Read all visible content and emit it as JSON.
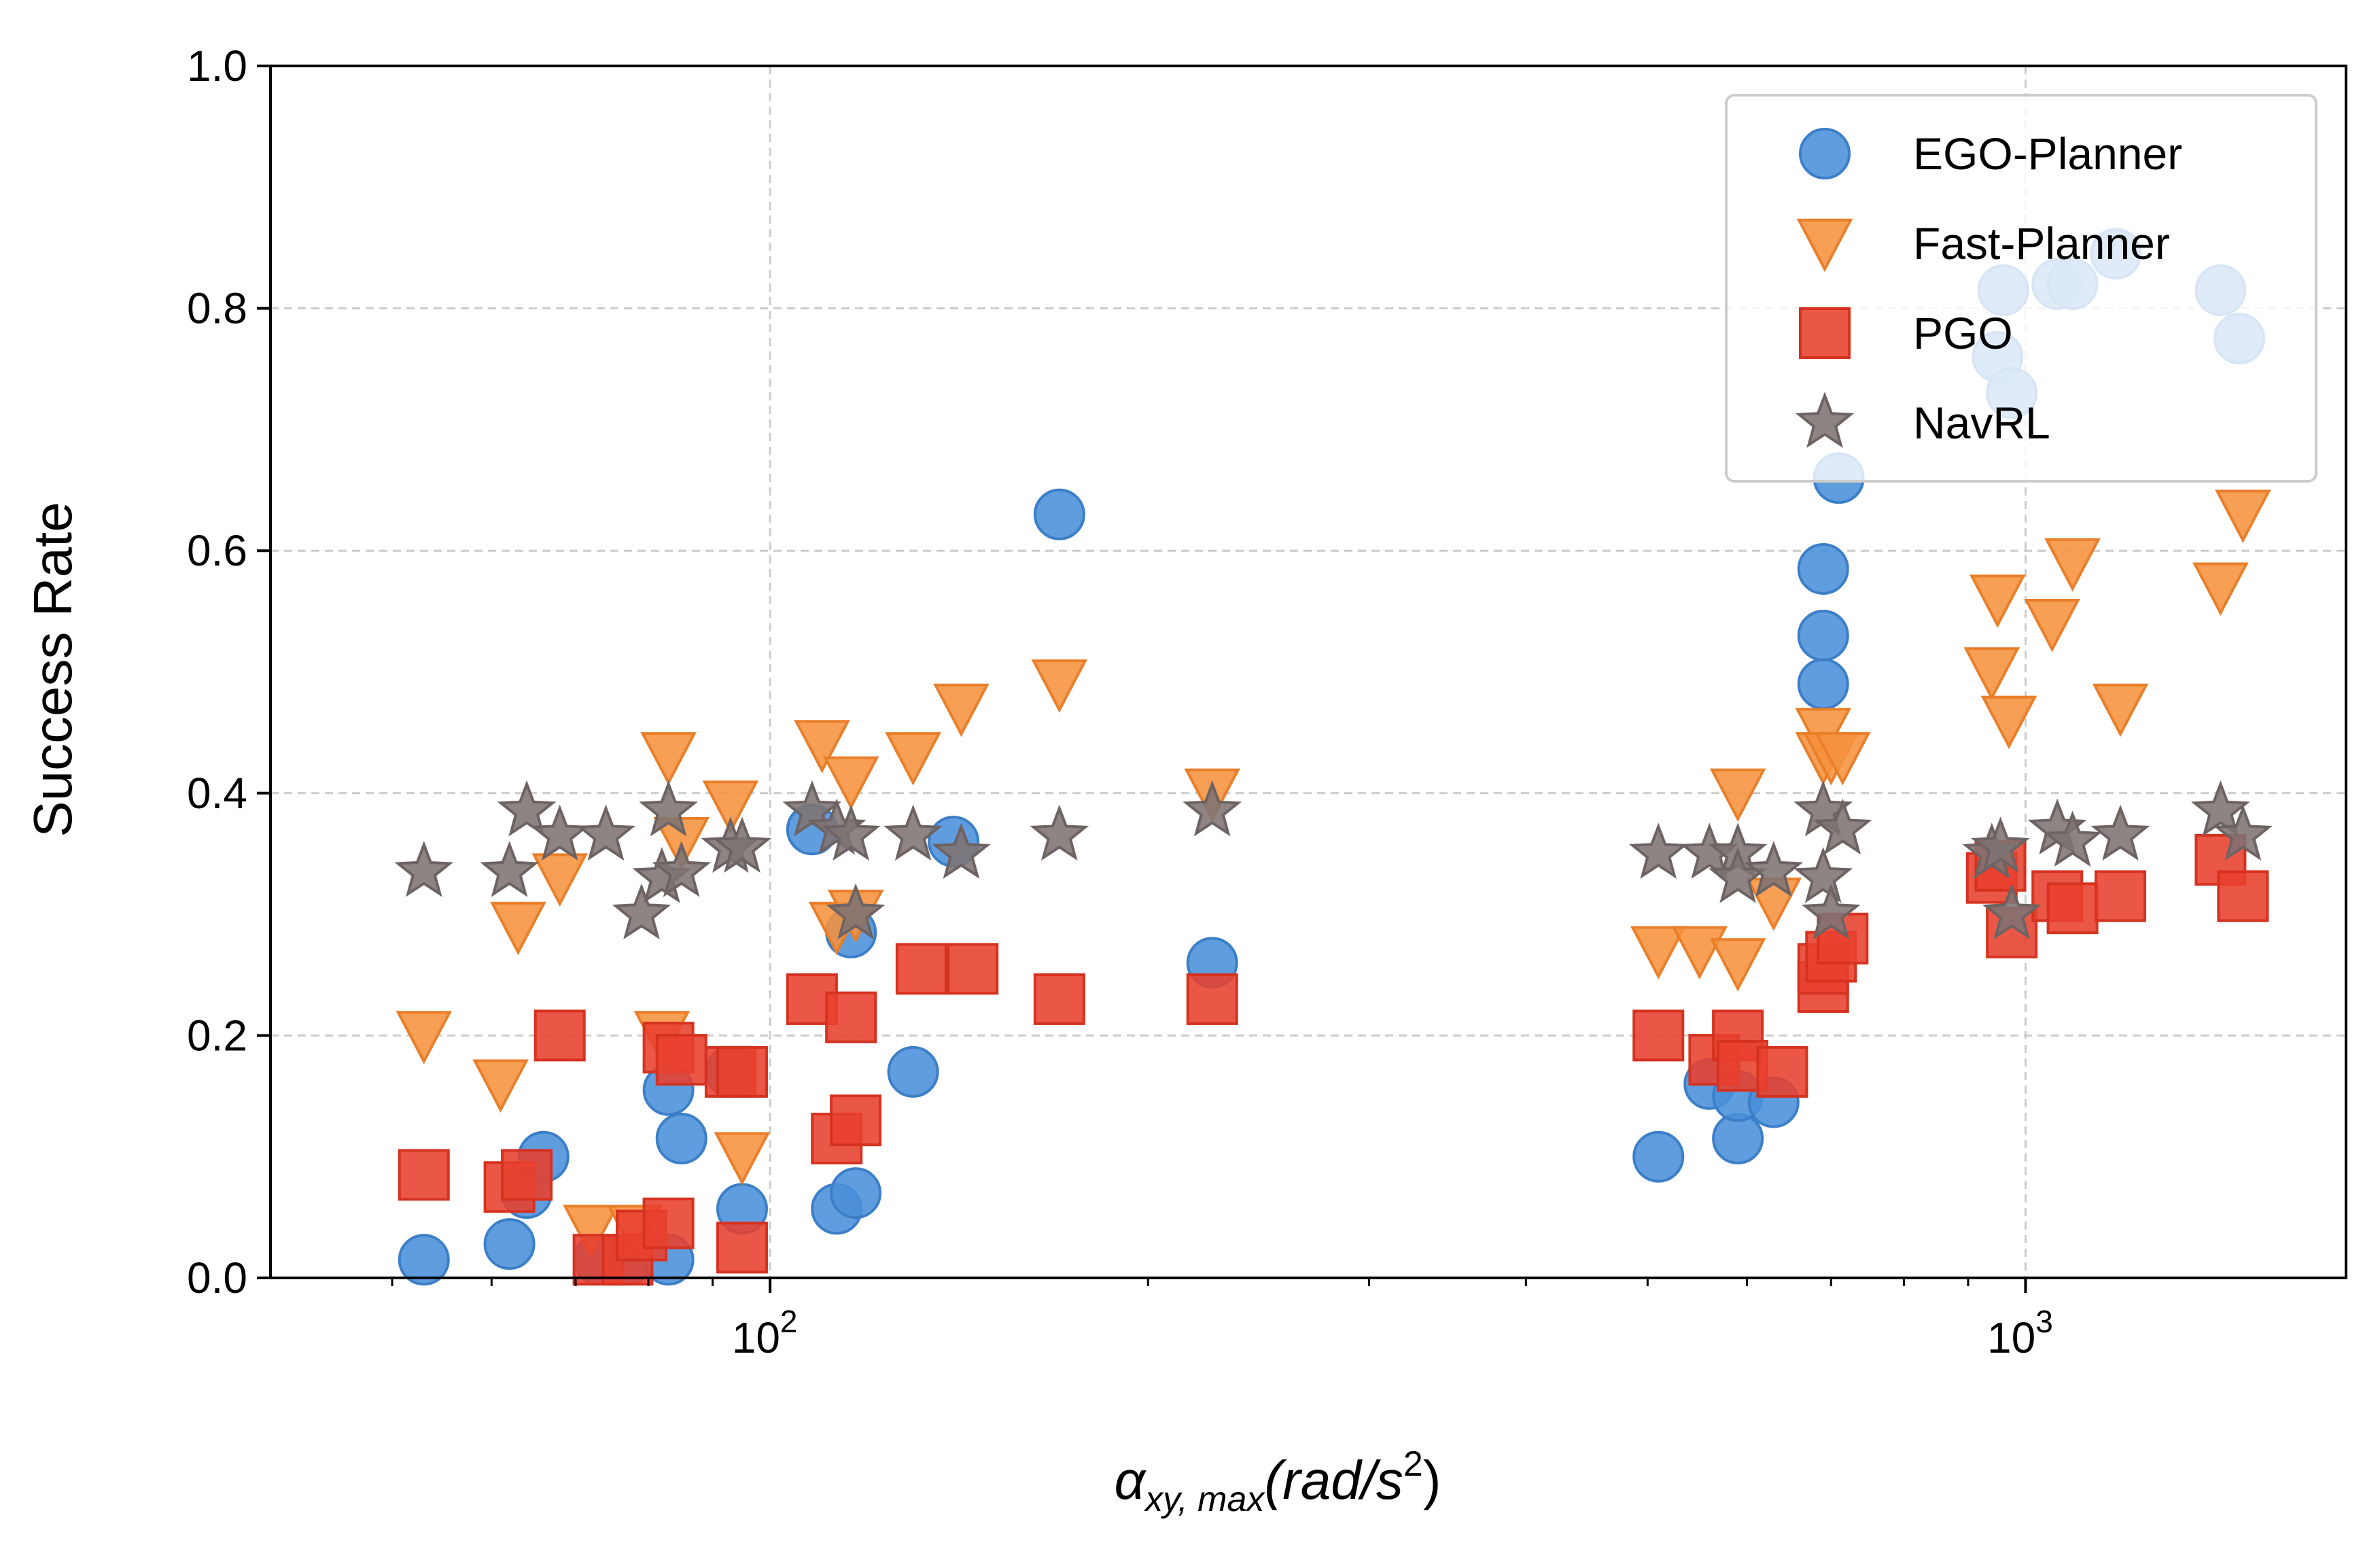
{
  "chart_data": {
    "type": "scatter",
    "title": "",
    "xlabel": "α",
    "xlabel_sub": "xy, max",
    "xlabel_units": "(rad/s",
    "xlabel_sup": "2",
    "xlabel_close": ")",
    "ylabel": "Success Rate",
    "xscale": "log",
    "xlim": [
      40,
      1800
    ],
    "ylim": [
      0,
      1.0
    ],
    "x_tick_base": "10",
    "x_ticks": [
      {
        "value": 100,
        "exp": "2"
      },
      {
        "value": 1000,
        "exp": "3"
      }
    ],
    "y_ticks": [
      "0.0",
      "0.2",
      "0.4",
      "0.6",
      "0.8",
      "1.0"
    ],
    "grid": true,
    "legend_position": "top-right",
    "series": [
      {
        "name": "EGO-Planner",
        "marker": "circle",
        "color": "#4a90d9",
        "edge": "#3b7fc8",
        "points": [
          [
            53,
            0.015
          ],
          [
            62,
            0.028
          ],
          [
            64,
            0.07
          ],
          [
            66,
            0.1
          ],
          [
            73,
            0.015
          ],
          [
            77,
            0.015
          ],
          [
            83,
            0.015
          ],
          [
            83,
            0.155
          ],
          [
            85,
            0.115
          ],
          [
            93,
            0.17
          ],
          [
            95,
            0.057
          ],
          [
            108,
            0.37
          ],
          [
            113,
            0.057
          ],
          [
            116,
            0.285
          ],
          [
            117,
            0.07
          ],
          [
            130,
            0.17
          ],
          [
            140,
            0.36
          ],
          [
            170,
            0.63
          ],
          [
            225,
            0.26
          ],
          [
            510,
            0.1
          ],
          [
            560,
            0.16
          ],
          [
            590,
            0.115
          ],
          [
            590,
            0.15
          ],
          [
            630,
            0.145
          ],
          [
            690,
            0.49
          ],
          [
            690,
            0.53
          ],
          [
            690,
            0.585
          ],
          [
            710,
            0.66
          ],
          [
            950,
            0.76
          ],
          [
            960,
            0.815
          ],
          [
            975,
            0.73
          ],
          [
            1060,
            0.82
          ],
          [
            1090,
            0.82
          ],
          [
            1180,
            0.845
          ],
          [
            1430,
            0.815
          ],
          [
            1480,
            0.775
          ]
        ]
      },
      {
        "name": "Fast-Planner",
        "marker": "triangle-down",
        "color": "#f5923e",
        "edge": "#e97f2a",
        "points": [
          [
            53,
            0.2
          ],
          [
            61,
            0.16
          ],
          [
            63,
            0.29
          ],
          [
            68,
            0.33
          ],
          [
            72,
            0.04
          ],
          [
            78,
            0.04
          ],
          [
            82,
            0.2
          ],
          [
            83,
            0.43
          ],
          [
            85,
            0.36
          ],
          [
            93,
            0.39
          ],
          [
            95,
            0.1
          ],
          [
            110,
            0.44
          ],
          [
            113,
            0.29
          ],
          [
            116,
            0.41
          ],
          [
            117,
            0.3
          ],
          [
            130,
            0.43
          ],
          [
            142,
            0.47
          ],
          [
            170,
            0.49
          ],
          [
            225,
            0.4
          ],
          [
            510,
            0.27
          ],
          [
            550,
            0.27
          ],
          [
            590,
            0.4
          ],
          [
            590,
            0.26
          ],
          [
            630,
            0.31
          ],
          [
            690,
            0.45
          ],
          [
            690,
            0.43
          ],
          [
            700,
            0.43
          ],
          [
            715,
            0.43
          ],
          [
            940,
            0.5
          ],
          [
            950,
            0.56
          ],
          [
            970,
            0.46
          ],
          [
            1050,
            0.54
          ],
          [
            1090,
            0.59
          ],
          [
            1190,
            0.47
          ],
          [
            1430,
            0.57
          ],
          [
            1490,
            0.63
          ]
        ]
      },
      {
        "name": "PGO",
        "marker": "square",
        "color": "#e8402e",
        "edge": "#d63220",
        "points": [
          [
            53,
            0.085
          ],
          [
            62,
            0.075
          ],
          [
            64,
            0.085
          ],
          [
            68,
            0.2
          ],
          [
            73,
            0.015
          ],
          [
            77,
            0.015
          ],
          [
            79,
            0.035
          ],
          [
            83,
            0.045
          ],
          [
            83,
            0.19
          ],
          [
            85,
            0.18
          ],
          [
            93,
            0.17
          ],
          [
            95,
            0.17
          ],
          [
            95,
            0.025
          ],
          [
            108,
            0.23
          ],
          [
            113,
            0.115
          ],
          [
            116,
            0.215
          ],
          [
            117,
            0.13
          ],
          [
            132,
            0.255
          ],
          [
            145,
            0.255
          ],
          [
            170,
            0.23
          ],
          [
            225,
            0.23
          ],
          [
            510,
            0.2
          ],
          [
            565,
            0.18
          ],
          [
            590,
            0.2
          ],
          [
            595,
            0.175
          ],
          [
            640,
            0.17
          ],
          [
            690,
            0.24
          ],
          [
            690,
            0.255
          ],
          [
            700,
            0.265
          ],
          [
            715,
            0.28
          ],
          [
            940,
            0.33
          ],
          [
            955,
            0.34
          ],
          [
            975,
            0.285
          ],
          [
            1060,
            0.315
          ],
          [
            1090,
            0.305
          ],
          [
            1190,
            0.315
          ],
          [
            1430,
            0.345
          ],
          [
            1490,
            0.315
          ]
        ]
      },
      {
        "name": "NavRL",
        "marker": "star",
        "color": "#7e7373",
        "edge": "#6e6363",
        "points": [
          [
            53,
            0.335
          ],
          [
            62,
            0.335
          ],
          [
            64,
            0.385
          ],
          [
            68,
            0.365
          ],
          [
            74,
            0.365
          ],
          [
            79,
            0.3
          ],
          [
            82,
            0.33
          ],
          [
            83,
            0.385
          ],
          [
            85,
            0.335
          ],
          [
            93,
            0.355
          ],
          [
            95,
            0.355
          ],
          [
            108,
            0.385
          ],
          [
            113,
            0.37
          ],
          [
            116,
            0.365
          ],
          [
            117,
            0.3
          ],
          [
            130,
            0.365
          ],
          [
            142,
            0.35
          ],
          [
            170,
            0.365
          ],
          [
            225,
            0.385
          ],
          [
            510,
            0.35
          ],
          [
            560,
            0.35
          ],
          [
            590,
            0.35
          ],
          [
            590,
            0.33
          ],
          [
            630,
            0.335
          ],
          [
            690,
            0.33
          ],
          [
            690,
            0.385
          ],
          [
            700,
            0.3
          ],
          [
            715,
            0.37
          ],
          [
            940,
            0.35
          ],
          [
            955,
            0.355
          ],
          [
            975,
            0.3
          ],
          [
            1060,
            0.37
          ],
          [
            1090,
            0.36
          ],
          [
            1190,
            0.365
          ],
          [
            1430,
            0.385
          ],
          [
            1490,
            0.365
          ]
        ]
      }
    ]
  }
}
